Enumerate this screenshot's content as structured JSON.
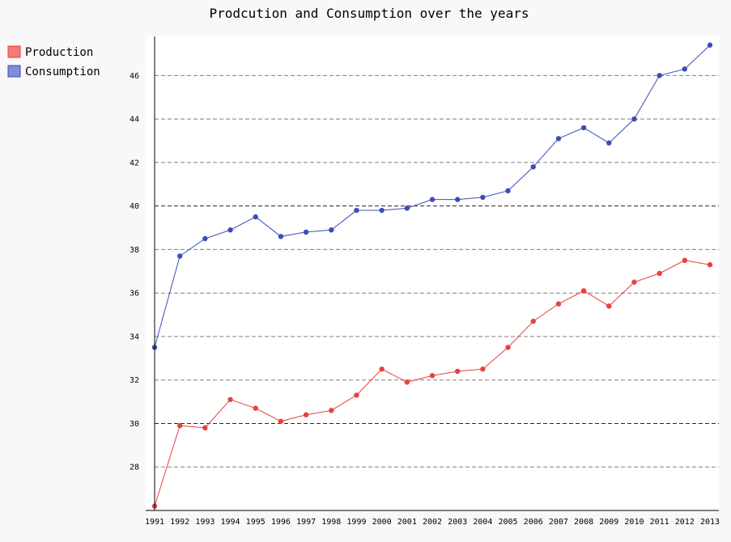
{
  "chart_data": {
    "type": "line",
    "title": "Prodcution and Consumption over the years",
    "xlabel": "",
    "ylabel": "",
    "categories": [
      "1991",
      "1992",
      "1993",
      "1994",
      "1995",
      "1996",
      "1997",
      "1998",
      "1999",
      "2000",
      "2001",
      "2002",
      "2003",
      "2004",
      "2005",
      "2006",
      "2007",
      "2008",
      "2009",
      "2010",
      "2011",
      "2012",
      "2013"
    ],
    "series": [
      {
        "name": "Production",
        "color": "#e8413c",
        "legend_color": "#f47b76",
        "values": [
          26.2,
          29.9,
          29.8,
          31.1,
          30.7,
          30.1,
          30.4,
          30.6,
          31.3,
          32.5,
          31.9,
          32.2,
          32.4,
          32.5,
          33.5,
          34.7,
          35.5,
          36.1,
          35.4,
          36.5,
          36.9,
          37.5,
          37.3
        ]
      },
      {
        "name": "Consumption",
        "color": "#3b4cb8",
        "legend_color": "#7e8dd6",
        "values": [
          33.5,
          37.7,
          38.5,
          38.9,
          39.5,
          38.6,
          38.8,
          38.9,
          39.8,
          39.8,
          39.9,
          40.3,
          40.3,
          40.4,
          40.7,
          41.8,
          43.1,
          43.6,
          42.9,
          44.0,
          46.0,
          46.3,
          47.4
        ]
      }
    ],
    "y_ticks": [
      28,
      30,
      32,
      34,
      36,
      38,
      40,
      42,
      44,
      46
    ],
    "y_major_ticks": [
      30,
      40
    ],
    "ylim": [
      26.0,
      47.8
    ],
    "grid": "horizontal dashed",
    "legend_position": "top-left",
    "plot_background": "#ffffff",
    "page_background": "#f8f8f8"
  }
}
